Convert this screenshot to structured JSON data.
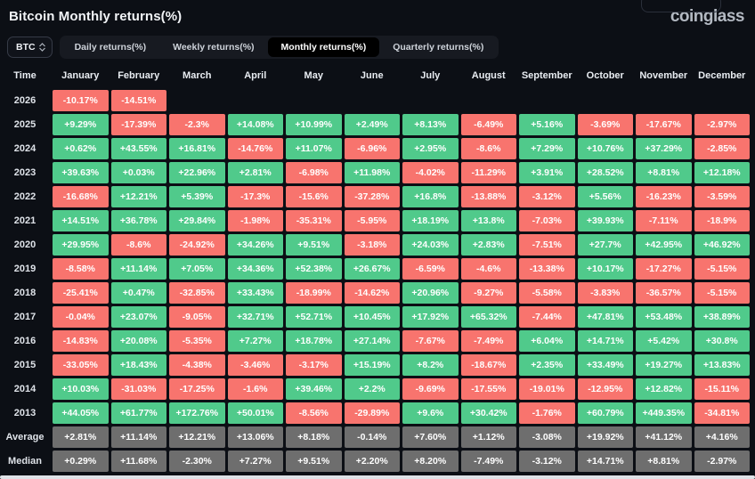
{
  "header": {
    "title": "Bitcoin Monthly returns(%)",
    "logo": "coinglass",
    "coin_selector": "BTC",
    "tabs": [
      {
        "label": "Daily returns(%)",
        "active": false
      },
      {
        "label": "Weekly returns(%)",
        "active": false
      },
      {
        "label": "Monthly returns(%)",
        "active": true
      },
      {
        "label": "Quarterly returns(%)",
        "active": false
      }
    ]
  },
  "colors": {
    "background": "#0c0f15",
    "positive": "#50ca8b",
    "negative": "#f8746e",
    "summary": "#6e6e6e",
    "active_tab_bg": "#000000"
  },
  "table": {
    "columns": [
      "Time",
      "January",
      "February",
      "March",
      "April",
      "May",
      "June",
      "July",
      "August",
      "September",
      "October",
      "November",
      "December"
    ],
    "rows": [
      {
        "label": "2026",
        "type": "year",
        "values": [
          "-10.17%",
          "-14.51%",
          "",
          "",
          "",
          "",
          "",
          "",
          "",
          "",
          "",
          ""
        ]
      },
      {
        "label": "2025",
        "type": "year",
        "values": [
          "+9.29%",
          "-17.39%",
          "-2.3%",
          "+14.08%",
          "+10.99%",
          "+2.49%",
          "+8.13%",
          "-6.49%",
          "+5.16%",
          "-3.69%",
          "-17.67%",
          "-2.97%"
        ]
      },
      {
        "label": "2024",
        "type": "year",
        "values": [
          "+0.62%",
          "+43.55%",
          "+16.81%",
          "-14.76%",
          "+11.07%",
          "-6.96%",
          "+2.95%",
          "-8.6%",
          "+7.29%",
          "+10.76%",
          "+37.29%",
          "-2.85%"
        ]
      },
      {
        "label": "2023",
        "type": "year",
        "values": [
          "+39.63%",
          "+0.03%",
          "+22.96%",
          "+2.81%",
          "-6.98%",
          "+11.98%",
          "-4.02%",
          "-11.29%",
          "+3.91%",
          "+28.52%",
          "+8.81%",
          "+12.18%"
        ]
      },
      {
        "label": "2022",
        "type": "year",
        "values": [
          "-16.68%",
          "+12.21%",
          "+5.39%",
          "-17.3%",
          "-15.6%",
          "-37.28%",
          "+16.8%",
          "-13.88%",
          "-3.12%",
          "+5.56%",
          "-16.23%",
          "-3.59%"
        ]
      },
      {
        "label": "2021",
        "type": "year",
        "values": [
          "+14.51%",
          "+36.78%",
          "+29.84%",
          "-1.98%",
          "-35.31%",
          "-5.95%",
          "+18.19%",
          "+13.8%",
          "-7.03%",
          "+39.93%",
          "-7.11%",
          "-18.9%"
        ]
      },
      {
        "label": "2020",
        "type": "year",
        "values": [
          "+29.95%",
          "-8.6%",
          "-24.92%",
          "+34.26%",
          "+9.51%",
          "-3.18%",
          "+24.03%",
          "+2.83%",
          "-7.51%",
          "+27.7%",
          "+42.95%",
          "+46.92%"
        ]
      },
      {
        "label": "2019",
        "type": "year",
        "values": [
          "-8.58%",
          "+11.14%",
          "+7.05%",
          "+34.36%",
          "+52.38%",
          "+26.67%",
          "-6.59%",
          "-4.6%",
          "-13.38%",
          "+10.17%",
          "-17.27%",
          "-5.15%"
        ]
      },
      {
        "label": "2018",
        "type": "year",
        "values": [
          "-25.41%",
          "+0.47%",
          "-32.85%",
          "+33.43%",
          "-18.99%",
          "-14.62%",
          "+20.96%",
          "-9.27%",
          "-5.58%",
          "-3.83%",
          "-36.57%",
          "-5.15%"
        ]
      },
      {
        "label": "2017",
        "type": "year",
        "values": [
          "-0.04%",
          "+23.07%",
          "-9.05%",
          "+32.71%",
          "+52.71%",
          "+10.45%",
          "+17.92%",
          "+65.32%",
          "-7.44%",
          "+47.81%",
          "+53.48%",
          "+38.89%"
        ]
      },
      {
        "label": "2016",
        "type": "year",
        "values": [
          "-14.83%",
          "+20.08%",
          "-5.35%",
          "+7.27%",
          "+18.78%",
          "+27.14%",
          "-7.67%",
          "-7.49%",
          "+6.04%",
          "+14.71%",
          "+5.42%",
          "+30.8%"
        ]
      },
      {
        "label": "2015",
        "type": "year",
        "values": [
          "-33.05%",
          "+18.43%",
          "-4.38%",
          "-3.46%",
          "-3.17%",
          "+15.19%",
          "+8.2%",
          "-18.67%",
          "+2.35%",
          "+33.49%",
          "+19.27%",
          "+13.83%"
        ]
      },
      {
        "label": "2014",
        "type": "year",
        "values": [
          "+10.03%",
          "-31.03%",
          "-17.25%",
          "-1.6%",
          "+39.46%",
          "+2.2%",
          "-9.69%",
          "-17.55%",
          "-19.01%",
          "-12.95%",
          "+12.82%",
          "-15.11%"
        ]
      },
      {
        "label": "2013",
        "type": "year",
        "values": [
          "+44.05%",
          "+61.77%",
          "+172.76%",
          "+50.01%",
          "-8.56%",
          "-29.89%",
          "+9.6%",
          "+30.42%",
          "-1.76%",
          "+60.79%",
          "+449.35%",
          "-34.81%"
        ]
      },
      {
        "label": "Average",
        "type": "summary",
        "values": [
          "+2.81%",
          "+11.14%",
          "+12.21%",
          "+13.06%",
          "+8.18%",
          "-0.14%",
          "+7.60%",
          "+1.12%",
          "-3.08%",
          "+19.92%",
          "+41.12%",
          "+4.16%"
        ]
      },
      {
        "label": "Median",
        "type": "summary",
        "values": [
          "+0.29%",
          "+11.68%",
          "-2.30%",
          "+7.27%",
          "+9.51%",
          "+2.20%",
          "+8.20%",
          "-7.49%",
          "-3.12%",
          "+14.71%",
          "+8.81%",
          "-2.97%"
        ]
      }
    ]
  }
}
